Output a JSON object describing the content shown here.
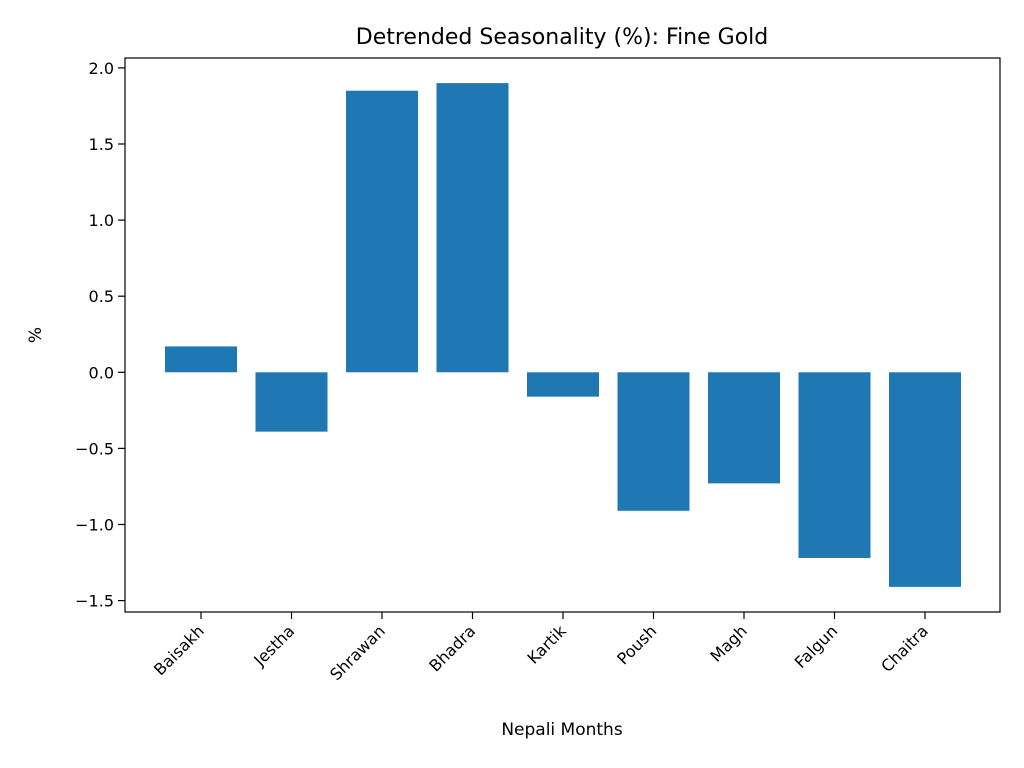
{
  "chart_data": {
    "type": "bar",
    "title": "Detrended Seasonality (%): Fine Gold",
    "xlabel": "Nepali Months",
    "ylabel": "%",
    "categories": [
      "Baisakh",
      "Jestha",
      "Shrawan",
      "Bhadra",
      "Kartik",
      "Poush",
      "Magh",
      "Falgun",
      "Chaitra"
    ],
    "values": [
      0.17,
      -0.39,
      1.85,
      1.9,
      -0.16,
      -0.91,
      -0.73,
      -1.22,
      -1.41
    ],
    "yticks": [
      -1.5,
      -1.0,
      -0.5,
      0.0,
      0.5,
      1.0,
      1.5,
      2.0
    ],
    "ytick_labels": [
      "−1.5",
      "−1.0",
      "−0.5",
      "0.0",
      "0.5",
      "1.0",
      "1.5",
      "2.0"
    ],
    "ylim": [
      -1.575,
      2.065
    ],
    "bar_color": "#1f77b4",
    "grid": false,
    "legend": "none"
  }
}
